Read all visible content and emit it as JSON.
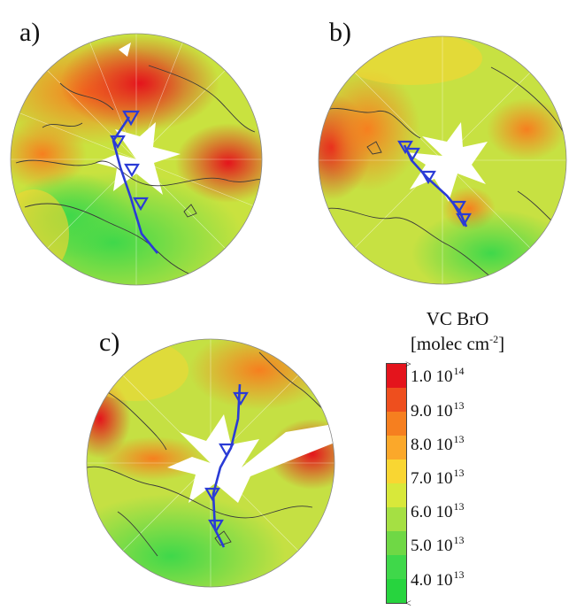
{
  "panels": [
    {
      "id": "a",
      "label": "a)"
    },
    {
      "id": "b",
      "label": "b)"
    },
    {
      "id": "c",
      "label": "c)"
    }
  ],
  "legend": {
    "title_line1": "VC BrO",
    "title_line2": "[molec cm",
    "title_exp": "-2",
    "title_end": "]",
    "ticks": [
      {
        "mantissa": "1.0 10",
        "exp": "14"
      },
      {
        "mantissa": "9.0 10",
        "exp": "13"
      },
      {
        "mantissa": "8.0 10",
        "exp": "13"
      },
      {
        "mantissa": "7.0 10",
        "exp": "13"
      },
      {
        "mantissa": "6.0 10",
        "exp": "13"
      },
      {
        "mantissa": "5.0 10",
        "exp": "13"
      },
      {
        "mantissa": "4.0 10",
        "exp": "13"
      }
    ],
    "over_marker": ">",
    "under_marker": "<",
    "colors": [
      "#e4141c",
      "#ee4f1e",
      "#f67f1f",
      "#fba82a",
      "#f9d632",
      "#d8e83a",
      "#a5e043",
      "#6fd845",
      "#3fd84a",
      "#27d43e"
    ]
  },
  "colors": {
    "track": "#2a3bd6",
    "coast": "#3a3a3a",
    "grid": "#ffffff"
  }
}
